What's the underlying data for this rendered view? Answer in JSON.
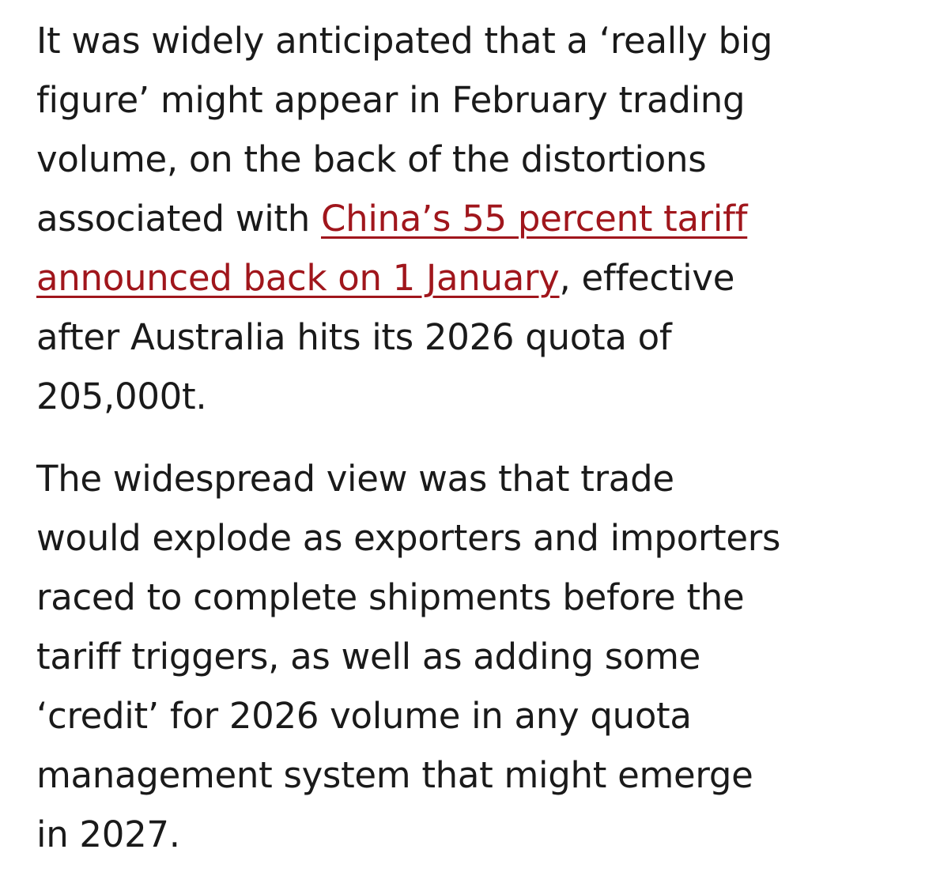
{
  "article": {
    "paragraph1": {
      "l1": "It was widely anticipated that a ‘really big",
      "l2": "figure’ might appear in February trading",
      "l3": "volume, on the back of the distortions",
      "l4_prefix": "associated with ",
      "link_part1": "China’s 55 percent tariff",
      "link_part2": "announced back on  1 January",
      "l5_suffix": ", effective",
      "l6": "after Australia hits its 2026 quota of",
      "l7": "205,000t."
    },
    "paragraph2": {
      "l1": "The widespread view was that trade",
      "l2": "would explode as exporters and importers",
      "l3": "raced to complete shipments before the",
      "l4": "tariff triggers, as well as adding some",
      "l5": "‘credit’ for 2026 volume in any quota",
      "l6": "management system that might emerge",
      "l7": "in 2027."
    },
    "link_color": "#a0161c"
  }
}
